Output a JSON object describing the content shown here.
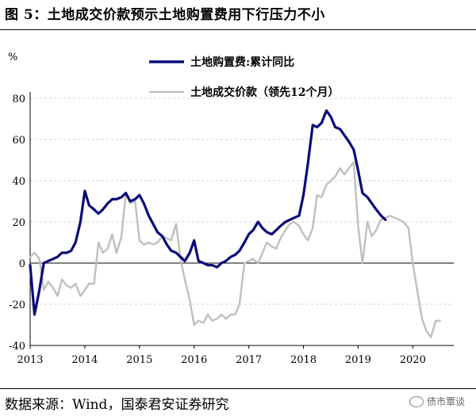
{
  "title": "图 5：土地成交价款预示土地购置费用下行压力不小",
  "source": "数据来源：Wind，国泰君安证券研究",
  "watermark": "债市覃谈",
  "chart_data": {
    "type": "line",
    "ylabel": "%",
    "ylim": [
      -40,
      80
    ],
    "yticks": [
      -40,
      -20,
      0,
      20,
      40,
      60,
      80
    ],
    "xticks": [
      "2013",
      "2014",
      "2015",
      "2016",
      "2017",
      "2018",
      "2019",
      "2020"
    ],
    "xlim": [
      2013.0,
      2020.75
    ],
    "grid": "y",
    "legend": "top",
    "series": [
      {
        "name": "土地购置费:累计同比",
        "color": "#0a0a7a",
        "points": [
          [
            2013.0,
            -1
          ],
          [
            2013.08,
            -25
          ],
          [
            2013.17,
            -13
          ],
          [
            2013.25,
            0
          ],
          [
            2013.33,
            1
          ],
          [
            2013.42,
            2
          ],
          [
            2013.5,
            3
          ],
          [
            2013.58,
            5
          ],
          [
            2013.67,
            5
          ],
          [
            2013.75,
            6
          ],
          [
            2013.83,
            10
          ],
          [
            2013.92,
            20
          ],
          [
            2014.0,
            35
          ],
          [
            2014.08,
            28
          ],
          [
            2014.17,
            26
          ],
          [
            2014.25,
            24
          ],
          [
            2014.33,
            26
          ],
          [
            2014.42,
            29
          ],
          [
            2014.5,
            31
          ],
          [
            2014.58,
            31
          ],
          [
            2014.67,
            32
          ],
          [
            2014.75,
            34
          ],
          [
            2014.83,
            30
          ],
          [
            2014.92,
            31
          ],
          [
            2015.0,
            33
          ],
          [
            2015.08,
            29
          ],
          [
            2015.17,
            23
          ],
          [
            2015.25,
            19
          ],
          [
            2015.33,
            15
          ],
          [
            2015.42,
            13
          ],
          [
            2015.5,
            9
          ],
          [
            2015.58,
            6
          ],
          [
            2015.67,
            5
          ],
          [
            2015.75,
            3
          ],
          [
            2015.83,
            1
          ],
          [
            2015.92,
            5
          ],
          [
            2016.0,
            11
          ],
          [
            2016.08,
            1
          ],
          [
            2016.17,
            0
          ],
          [
            2016.25,
            -1
          ],
          [
            2016.33,
            -1
          ],
          [
            2016.42,
            -2
          ],
          [
            2016.5,
            0
          ],
          [
            2016.58,
            1
          ],
          [
            2016.67,
            3
          ],
          [
            2016.75,
            4
          ],
          [
            2016.83,
            6
          ],
          [
            2016.92,
            10
          ],
          [
            2017.0,
            14
          ],
          [
            2017.08,
            16
          ],
          [
            2017.17,
            20
          ],
          [
            2017.25,
            17
          ],
          [
            2017.33,
            15
          ],
          [
            2017.42,
            14
          ],
          [
            2017.5,
            16
          ],
          [
            2017.58,
            18
          ],
          [
            2017.67,
            20
          ],
          [
            2017.75,
            21
          ],
          [
            2017.83,
            22
          ],
          [
            2017.92,
            23
          ],
          [
            2018.0,
            33
          ],
          [
            2018.08,
            48
          ],
          [
            2018.17,
            67
          ],
          [
            2018.25,
            66
          ],
          [
            2018.33,
            68
          ],
          [
            2018.42,
            74
          ],
          [
            2018.5,
            71
          ],
          [
            2018.58,
            66
          ],
          [
            2018.67,
            65
          ],
          [
            2018.75,
            62
          ],
          [
            2018.83,
            59
          ],
          [
            2018.92,
            55
          ],
          [
            2019.0,
            45
          ],
          [
            2019.08,
            34
          ],
          [
            2019.17,
            32
          ],
          [
            2019.25,
            29
          ],
          [
            2019.33,
            26
          ],
          [
            2019.42,
            23
          ],
          [
            2019.5,
            21
          ]
        ]
      },
      {
        "name": "土地成交价款（领先12个月）",
        "color": "#bfbfbf",
        "points": [
          [
            2013.0,
            3
          ],
          [
            2013.08,
            5
          ],
          [
            2013.17,
            2
          ],
          [
            2013.25,
            -13
          ],
          [
            2013.33,
            -9
          ],
          [
            2013.42,
            -12
          ],
          [
            2013.5,
            -16
          ],
          [
            2013.58,
            -8
          ],
          [
            2013.67,
            -11
          ],
          [
            2013.75,
            -12
          ],
          [
            2013.83,
            -10
          ],
          [
            2013.92,
            -16
          ],
          [
            2014.0,
            -13
          ],
          [
            2014.08,
            -10
          ],
          [
            2014.17,
            -10
          ],
          [
            2014.25,
            10
          ],
          [
            2014.33,
            5
          ],
          [
            2014.42,
            7
          ],
          [
            2014.5,
            14
          ],
          [
            2014.58,
            5
          ],
          [
            2014.67,
            13
          ],
          [
            2014.75,
            34
          ],
          [
            2014.83,
            29
          ],
          [
            2014.92,
            30
          ],
          [
            2015.0,
            11
          ],
          [
            2015.08,
            9
          ],
          [
            2015.17,
            10
          ],
          [
            2015.25,
            9
          ],
          [
            2015.33,
            10
          ],
          [
            2015.42,
            13
          ],
          [
            2015.5,
            12
          ],
          [
            2015.58,
            11
          ],
          [
            2015.67,
            19
          ],
          [
            2015.75,
            2
          ],
          [
            2015.83,
            -8
          ],
          [
            2015.92,
            -18
          ],
          [
            2016.0,
            -30
          ],
          [
            2016.08,
            -28
          ],
          [
            2016.17,
            -29
          ],
          [
            2016.25,
            -25
          ],
          [
            2016.33,
            -28
          ],
          [
            2016.42,
            -27
          ],
          [
            2016.5,
            -25
          ],
          [
            2016.58,
            -27
          ],
          [
            2016.67,
            -25
          ],
          [
            2016.75,
            -25
          ],
          [
            2016.83,
            -20
          ],
          [
            2016.92,
            0
          ],
          [
            2017.0,
            1
          ],
          [
            2017.08,
            2
          ],
          [
            2017.17,
            0
          ],
          [
            2017.25,
            5
          ],
          [
            2017.33,
            10
          ],
          [
            2017.42,
            8
          ],
          [
            2017.5,
            7
          ],
          [
            2017.58,
            12
          ],
          [
            2017.67,
            16
          ],
          [
            2017.75,
            19
          ],
          [
            2017.83,
            20
          ],
          [
            2017.92,
            18
          ],
          [
            2018.0,
            14
          ],
          [
            2018.08,
            11
          ],
          [
            2018.17,
            17
          ],
          [
            2018.25,
            33
          ],
          [
            2018.33,
            32
          ],
          [
            2018.42,
            38
          ],
          [
            2018.5,
            40
          ],
          [
            2018.58,
            42
          ],
          [
            2018.67,
            46
          ],
          [
            2018.75,
            43
          ],
          [
            2018.83,
            46
          ],
          [
            2018.92,
            49
          ],
          [
            2019.0,
            18
          ],
          [
            2019.08,
            0
          ],
          [
            2019.17,
            20
          ],
          [
            2019.25,
            13
          ],
          [
            2019.33,
            16
          ],
          [
            2019.42,
            21
          ],
          [
            2019.5,
            22
          ],
          [
            2019.58,
            23
          ],
          [
            2019.67,
            22
          ],
          [
            2019.75,
            21
          ],
          [
            2019.83,
            20
          ],
          [
            2019.92,
            17
          ],
          [
            2020.0,
            0
          ],
          [
            2020.08,
            -13
          ],
          [
            2020.17,
            -27
          ],
          [
            2020.25,
            -33
          ],
          [
            2020.33,
            -36
          ],
          [
            2020.42,
            -28
          ],
          [
            2020.5,
            -28
          ]
        ]
      }
    ]
  }
}
